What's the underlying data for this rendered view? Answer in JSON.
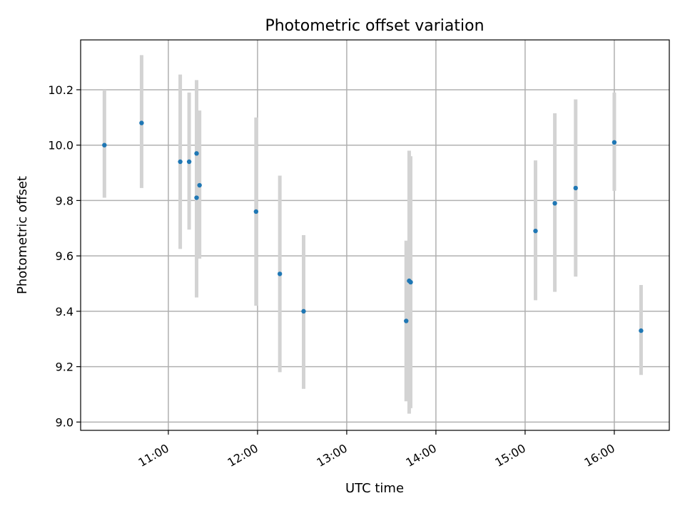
{
  "chart_data": {
    "type": "scatter",
    "title": "Photometric offset variation",
    "xlabel": "UTC time",
    "ylabel": "Photometric offset",
    "x_ticks": [
      "11:00",
      "12:00",
      "13:00",
      "14:00",
      "15:00",
      "16:00"
    ],
    "y_ticks": [
      "9.0",
      "9.2",
      "9.4",
      "9.6",
      "9.8",
      "10.0",
      "10.2"
    ],
    "xlim": [
      "10:01",
      "16:37"
    ],
    "ylim": [
      8.97,
      10.38
    ],
    "grid": true,
    "colors": {
      "points": "#1f77b4",
      "errorbars": "#d3d3d3"
    },
    "points": [
      {
        "x": "10:17",
        "y": 10.0,
        "lo": 9.81,
        "hi": 10.2
      },
      {
        "x": "10:42",
        "y": 10.08,
        "lo": 9.845,
        "hi": 10.325
      },
      {
        "x": "11:08",
        "y": 9.94,
        "lo": 9.625,
        "hi": 10.255
      },
      {
        "x": "11:14",
        "y": 9.94,
        "lo": 9.695,
        "hi": 10.19
      },
      {
        "x": "11:19",
        "y": 9.97,
        "lo": 9.71,
        "hi": 10.235
      },
      {
        "x": "11:19",
        "y": 9.81,
        "lo": 9.45,
        "hi": 10.17
      },
      {
        "x": "11:21",
        "y": 9.855,
        "lo": 9.59,
        "hi": 10.125
      },
      {
        "x": "11:59",
        "y": 9.76,
        "lo": 9.42,
        "hi": 10.1
      },
      {
        "x": "12:15",
        "y": 9.535,
        "lo": 9.18,
        "hi": 9.89
      },
      {
        "x": "12:31",
        "y": 9.4,
        "lo": 9.12,
        "hi": 9.675
      },
      {
        "x": "13:40",
        "y": 9.365,
        "lo": 9.075,
        "hi": 9.655
      },
      {
        "x": "13:42",
        "y": 9.51,
        "lo": 9.03,
        "hi": 9.98
      },
      {
        "x": "13:43",
        "y": 9.505,
        "lo": 9.05,
        "hi": 9.96
      },
      {
        "x": "15:07",
        "y": 9.69,
        "lo": 9.44,
        "hi": 9.945
      },
      {
        "x": "15:20",
        "y": 9.79,
        "lo": 9.47,
        "hi": 10.115
      },
      {
        "x": "15:34",
        "y": 9.845,
        "lo": 9.525,
        "hi": 10.165
      },
      {
        "x": "16:00",
        "y": 10.01,
        "lo": 9.835,
        "hi": 10.19
      },
      {
        "x": "16:18",
        "y": 9.33,
        "lo": 9.17,
        "hi": 9.495
      }
    ]
  }
}
